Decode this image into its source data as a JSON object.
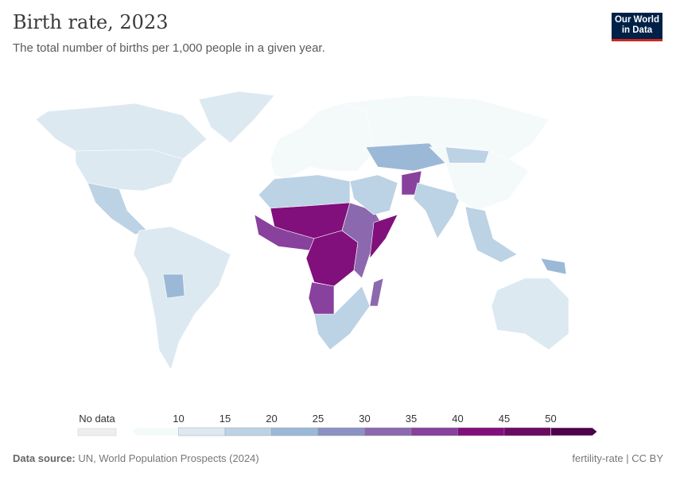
{
  "header": {
    "title": "Birth rate, 2023",
    "subtitle": "The total number of births per 1,000 people in a given year.",
    "logo": "Our World in Data"
  },
  "chart_data": {
    "type": "choropleth map",
    "title": "Birth rate, 2023",
    "subtitle": "The total number of births per 1,000 people in a given year.",
    "legend": {
      "no_data_label": "No data",
      "ticks": [
        "10",
        "15",
        "20",
        "25",
        "30",
        "35",
        "40",
        "45",
        "50"
      ],
      "bins": [
        [
          0,
          10
        ],
        [
          10,
          15
        ],
        [
          15,
          20
        ],
        [
          20,
          25
        ],
        [
          25,
          30
        ],
        [
          30,
          35
        ],
        [
          35,
          40
        ],
        [
          40,
          45
        ],
        [
          45,
          50
        ],
        [
          50,
          55
        ]
      ],
      "colors": [
        "#f4f9fa",
        "#dce9f1",
        "#bcd2e5",
        "#9bb9d7",
        "#8a93c3",
        "#8c69ae",
        "#88419d",
        "#810f7c",
        "#6b0a63",
        "#4d004b"
      ],
      "no_data_color": "#eeeeee"
    },
    "regions": [
      {
        "name": "North America",
        "bin": 1
      },
      {
        "name": "Canada",
        "bin": 1
      },
      {
        "name": "Greenland",
        "bin": 1
      },
      {
        "name": "Central America",
        "bin": 2
      },
      {
        "name": "South America",
        "bin": 1
      },
      {
        "name": "Bolivia",
        "bin": 3
      },
      {
        "name": "Europe",
        "bin": 0
      },
      {
        "name": "Russia",
        "bin": 0
      },
      {
        "name": "North Africa",
        "bin": 2
      },
      {
        "name": "Sahel",
        "bin": 7
      },
      {
        "name": "West Africa",
        "bin": 6
      },
      {
        "name": "Central Africa",
        "bin": 7
      },
      {
        "name": "East Africa",
        "bin": 5
      },
      {
        "name": "Somalia",
        "bin": 7
      },
      {
        "name": "Southern Africa",
        "bin": 2
      },
      {
        "name": "Angola",
        "bin": 6
      },
      {
        "name": "Madagascar",
        "bin": 5
      },
      {
        "name": "Middle East",
        "bin": 2
      },
      {
        "name": "Central Asia",
        "bin": 3
      },
      {
        "name": "Afghanistan",
        "bin": 6
      },
      {
        "name": "South Asia",
        "bin": 2
      },
      {
        "name": "China",
        "bin": 0
      },
      {
        "name": "Mongolia",
        "bin": 2
      },
      {
        "name": "Southeast Asia",
        "bin": 2
      },
      {
        "name": "Australia",
        "bin": 1
      },
      {
        "name": "Papua New Guinea",
        "bin": 3
      }
    ]
  },
  "footer": {
    "source_label": "Data source:",
    "source": "UN, World Population Prospects (2024)",
    "license": "fertility-rate | CC BY"
  }
}
